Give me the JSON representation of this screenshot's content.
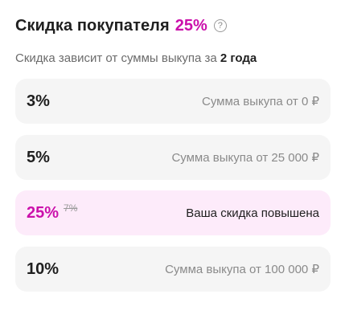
{
  "header": {
    "title": "Скидка покупателя",
    "percent": "25%",
    "help_glyph": "?"
  },
  "subtitle": {
    "text": "Скидка зависит от суммы выкупа за ",
    "bold": "2 года"
  },
  "tiers": [
    {
      "percent": "3%",
      "old_percent": "",
      "description": "Сумма выкупа от 0 ₽",
      "active": false
    },
    {
      "percent": "5%",
      "old_percent": "",
      "description": "Сумма выкупа от 25 000 ₽",
      "active": false
    },
    {
      "percent": "25%",
      "old_percent": "7%",
      "description": "Ваша скидка повышена",
      "active": true
    },
    {
      "percent": "10%",
      "old_percent": "",
      "description": "Сумма выкупа от 100 000 ₽",
      "active": false
    }
  ],
  "colors": {
    "accent": "#cb11ab",
    "active_bg": "#fdebfa",
    "row_bg": "#f5f5f5"
  }
}
